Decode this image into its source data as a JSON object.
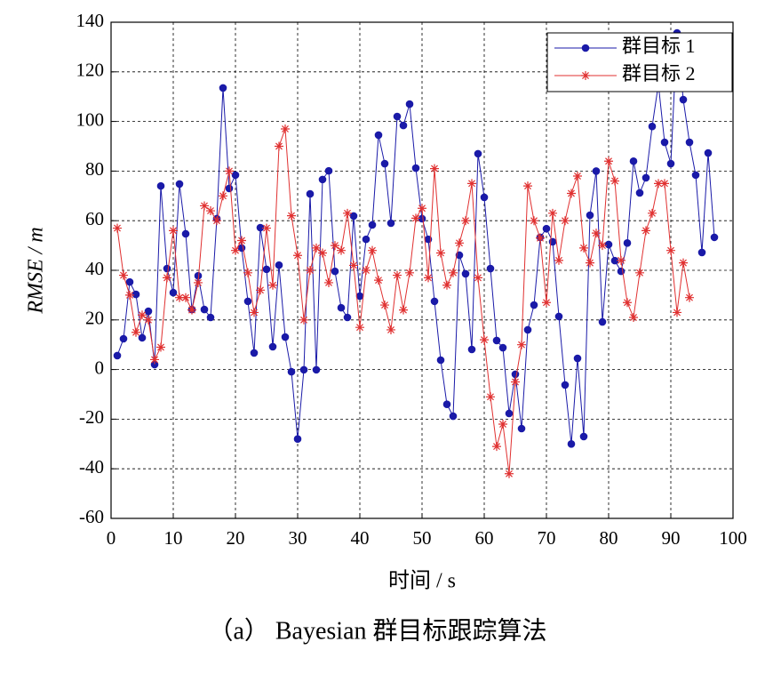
{
  "chart_data": {
    "type": "line",
    "x_label": "时间 / s",
    "y_label": "RMSE / m",
    "caption": "（a） Bayesian 群目标跟踪算法",
    "xlim": [
      0,
      100
    ],
    "xticks": [
      0,
      10,
      20,
      30,
      40,
      50,
      60,
      70,
      80,
      90,
      100
    ],
    "ylim": [
      -60,
      140
    ],
    "yticks": [
      -60,
      -40,
      -20,
      0,
      20,
      40,
      60,
      80,
      100,
      120,
      140
    ],
    "grid": true,
    "legend": "upper right",
    "series": [
      {
        "name": "群目标 1",
        "color": "#1a1aa8",
        "marker": "circle",
        "x": [
          1,
          2,
          3,
          4,
          5,
          6,
          7,
          8,
          9,
          10,
          11,
          12,
          13,
          14,
          15,
          16,
          17,
          18,
          19,
          20,
          21,
          22,
          23,
          24,
          25,
          26,
          27,
          28,
          29,
          30,
          31,
          32,
          33,
          34,
          35,
          36,
          37,
          38,
          39,
          40,
          41,
          42,
          43,
          44,
          45,
          46,
          47,
          48,
          49,
          50,
          51,
          52,
          53,
          54,
          55,
          56,
          57,
          58,
          59,
          60,
          61,
          62,
          63,
          64,
          65,
          66,
          67,
          68,
          69,
          70,
          71,
          72,
          73,
          74,
          75,
          76,
          77,
          78,
          79,
          80,
          81,
          82,
          83,
          84,
          85,
          86,
          87,
          88,
          89,
          90,
          91,
          92,
          93,
          94,
          95,
          96,
          97
        ],
        "values": [
          5.6,
          12.4,
          35.3,
          30.3,
          12.8,
          23.5,
          2,
          74,
          40.7,
          31,
          74.8,
          54.7,
          24.2,
          37.8,
          24.2,
          21,
          60.8,
          113.5,
          73,
          78.4,
          49,
          27.5,
          6.7,
          57.2,
          40.4,
          9.2,
          42.1,
          13.1,
          -0.9,
          -28,
          -0.1,
          70.8,
          -0.1,
          76.6,
          80.1,
          39.6,
          24.9,
          21,
          61.9,
          29.6,
          52.5,
          58.3,
          94.5,
          83,
          59,
          102,
          98.4,
          107,
          81.2,
          60.8,
          52.5,
          27.5,
          3.8,
          -14,
          -18.8,
          46.1,
          38.6,
          8.1,
          87,
          69.4,
          40.7,
          11.7,
          8.8,
          -17.7,
          -1.9,
          -23.8,
          16,
          26,
          53.3,
          56.8,
          51.5,
          21.4,
          -6.2,
          -30,
          4.5,
          -27,
          62.2,
          80,
          19.2,
          50.4,
          43.9,
          39.6,
          51,
          84,
          71.2,
          77.3,
          98,
          115,
          91.6,
          83,
          135.7,
          108.8,
          91.6,
          78.4,
          47.2,
          87.3,
          53.3
        ]
      },
      {
        "name": "群目标 2",
        "color": "#e03030",
        "marker": "star",
        "x": [
          1,
          2,
          3,
          4,
          5,
          6,
          7,
          8,
          9,
          10,
          11,
          12,
          13,
          14,
          15,
          16,
          17,
          18,
          19,
          20,
          21,
          22,
          23,
          24,
          25,
          26,
          27,
          28,
          29,
          30,
          31,
          32,
          33,
          34,
          35,
          36,
          37,
          38,
          39,
          40,
          41,
          42,
          43,
          44,
          45,
          46,
          47,
          48,
          49,
          50,
          51,
          52,
          53,
          54,
          55,
          56,
          57,
          58,
          59,
          60,
          61,
          62,
          63,
          64,
          65,
          66,
          67,
          68,
          69,
          70,
          71,
          72,
          73,
          74,
          75,
          76,
          77,
          78,
          79,
          80,
          81,
          82,
          83,
          84,
          85,
          86,
          87,
          88,
          89,
          90,
          91,
          92,
          93
        ],
        "values": [
          57,
          38,
          30,
          15,
          22,
          20,
          4,
          9,
          37,
          56,
          29,
          29,
          24,
          35,
          66,
          64,
          60,
          70,
          80,
          48,
          52,
          39,
          23,
          32,
          57,
          34,
          90,
          97,
          62,
          46,
          20,
          40,
          49,
          47,
          35,
          50,
          48,
          63,
          42,
          17,
          40,
          48,
          36,
          26,
          16,
          38,
          24,
          39,
          61,
          65,
          37,
          81,
          47,
          34,
          39,
          51,
          60,
          75,
          37,
          12,
          -11,
          -31,
          -22,
          -42,
          -5,
          10,
          74,
          60,
          53,
          27,
          63,
          44,
          60,
          71,
          78,
          49,
          43,
          55,
          50,
          84,
          76,
          44,
          27,
          21,
          39,
          56,
          63,
          75,
          75,
          48,
          23,
          43,
          29
        ]
      }
    ]
  }
}
